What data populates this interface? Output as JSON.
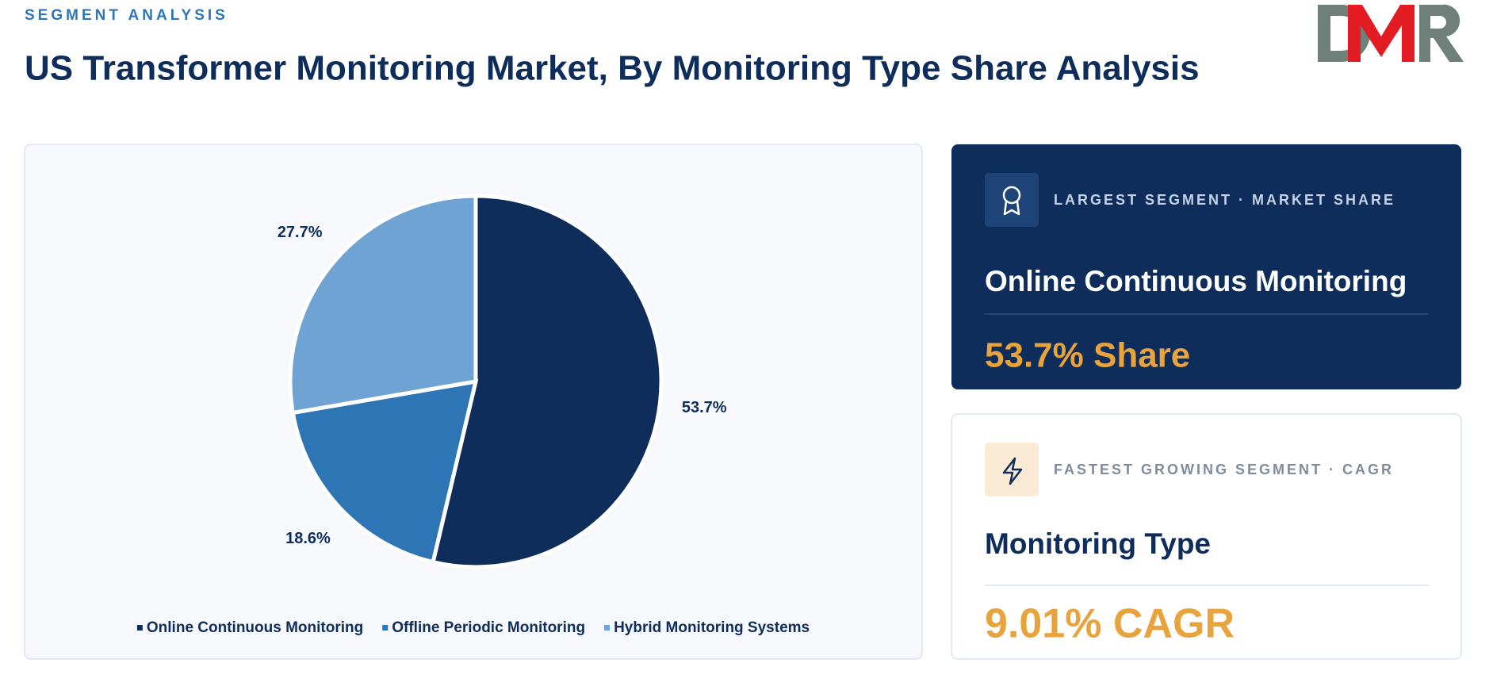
{
  "header": {
    "kicker": "SEGMENT ANALYSIS",
    "title": "US Transformer Monitoring Market, By Monitoring Type Share Analysis"
  },
  "chart_data": {
    "type": "pie",
    "categories": [
      "Online Continuous Monitoring",
      "Offline Periodic Monitoring",
      "Hybrid Monitoring Systems"
    ],
    "values": [
      53.7,
      18.6,
      27.7
    ],
    "value_labels": [
      "53.7%",
      "18.6%",
      "27.7%"
    ],
    "colors": [
      "#0f2d5a",
      "#2e75b6",
      "#6fa3d3"
    ]
  },
  "cards": [
    {
      "label": "LARGEST SEGMENT  ·  MARKET SHARE",
      "name": "Online Continuous Monitoring",
      "metric": "53.7% Share"
    },
    {
      "label": "FASTEST GROWING SEGMENT  ·  CAGR",
      "name": "Monitoring Type",
      "metric": "9.01% CAGR"
    }
  ]
}
